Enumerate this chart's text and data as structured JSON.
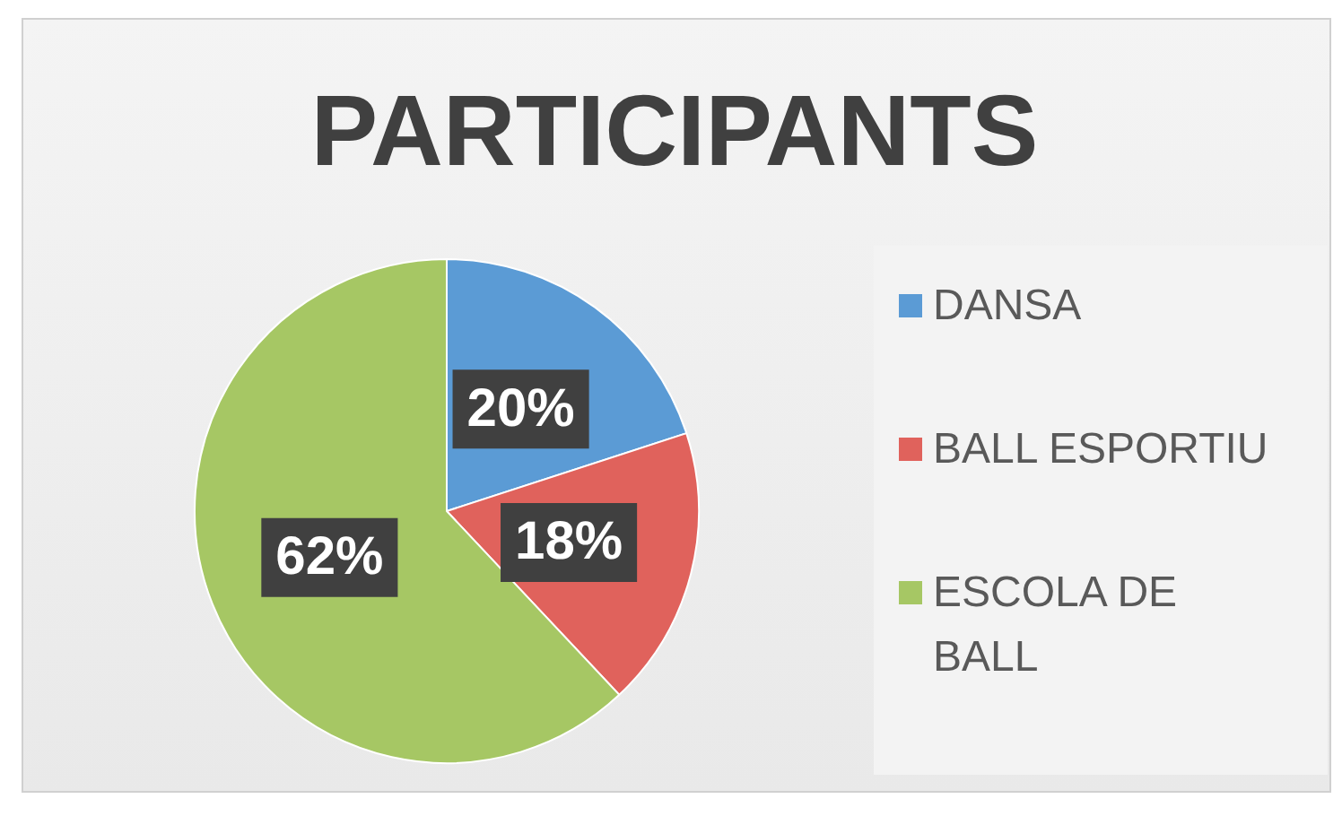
{
  "chart_data": {
    "type": "pie",
    "title": "PARTICIPANTS",
    "categories": [
      "DANSA",
      "BALL ESPORTIU",
      "ESCOLA DE BALL"
    ],
    "values": [
      20,
      18,
      62
    ],
    "colors": [
      "#5b9bd5",
      "#e0625c",
      "#a6c764"
    ],
    "value_labels": [
      "20%",
      "18%",
      "62%"
    ],
    "legend": "right"
  }
}
